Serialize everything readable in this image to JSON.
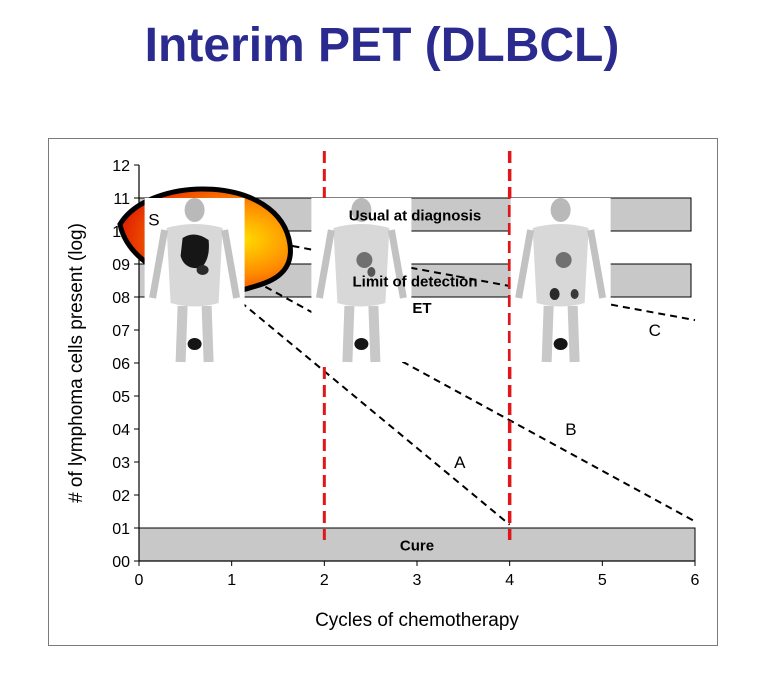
{
  "title": "Interim PET (DLBCL)",
  "chart_data": {
    "type": "line",
    "xlabel": "Cycles of chemotherapy",
    "ylabel": "# of lymphoma cells present (log)",
    "xlim": [
      0,
      6
    ],
    "ylim": [
      0,
      12
    ],
    "x_ticks": [
      "0",
      "1",
      "2",
      "3",
      "4",
      "5",
      "6"
    ],
    "y_ticks": [
      "00",
      "01",
      "02",
      "03",
      "04",
      "05",
      "06",
      "07",
      "08",
      "09",
      "10",
      "11",
      "12"
    ],
    "bands": [
      {
        "label": "Usual at diagnosis",
        "y_range": [
          10,
          11
        ]
      },
      {
        "label": "Limit of detection",
        "y_range": [
          8,
          9
        ]
      },
      {
        "label": "Cure",
        "y_range": [
          0,
          1
        ]
      }
    ],
    "vertical_markers": [
      2,
      4
    ],
    "series": [
      {
        "name": "A",
        "x": [
          0,
          4
        ],
        "y": [
          10.4,
          1.1
        ]
      },
      {
        "name": "B",
        "x": [
          0,
          6
        ],
        "y": [
          10.4,
          1.2
        ]
      },
      {
        "name": "C",
        "x": [
          0,
          6
        ],
        "y": [
          10.4,
          7.3
        ]
      }
    ],
    "annotations": [
      {
        "text": "A",
        "x": 3.4,
        "y": 3.0
      },
      {
        "text": "B",
        "x": 4.6,
        "y": 4.0
      },
      {
        "text": "C",
        "x": 5.5,
        "y": 7.0
      },
      {
        "text": "ET",
        "x": 2.95,
        "y": 7.7
      },
      {
        "text": "S",
        "x": 0.1,
        "y": 10.35
      }
    ]
  },
  "pet_images": [
    {
      "name": "baseline-pet",
      "x": 0.6,
      "y_top": 11.0
    },
    {
      "name": "interim-pet-2",
      "x": 2.4,
      "y_top": 11.0
    },
    {
      "name": "interim-pet-4",
      "x": 4.55,
      "y_top": 11.0
    }
  ],
  "colors": {
    "title": "#2b2a8f",
    "band_fill": "#c8c8c8",
    "marker": "#e0161a",
    "line": "#000000"
  }
}
